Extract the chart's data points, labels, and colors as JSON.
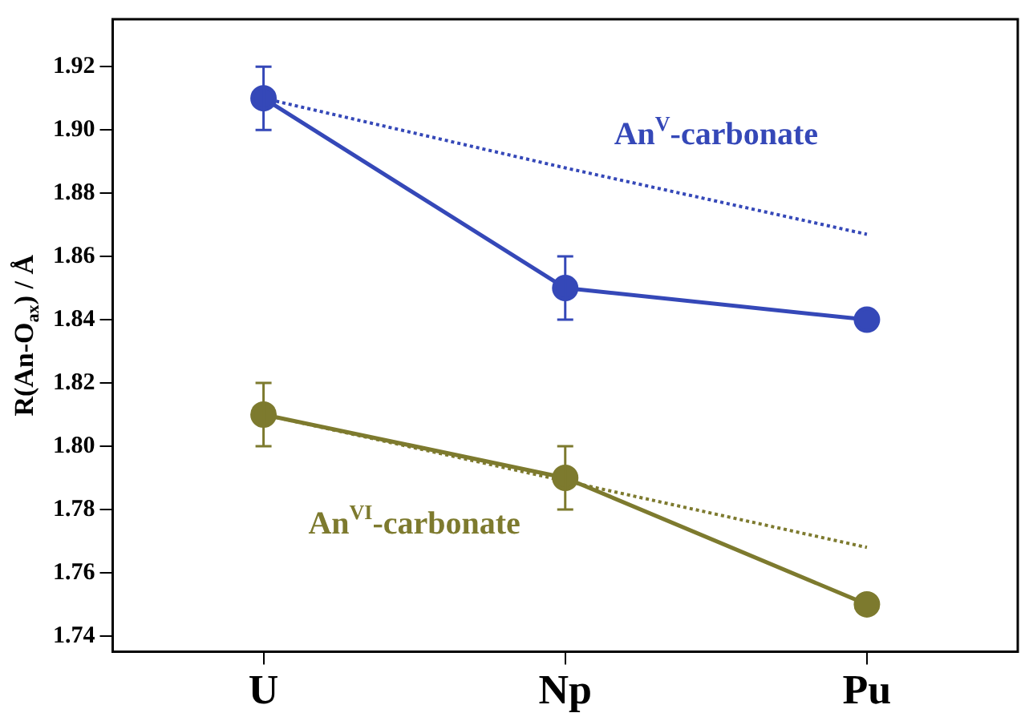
{
  "chart_data": {
    "type": "line",
    "ylabel": "R(An-O$_{ax}$) / Å",
    "categories": [
      "U",
      "Np",
      "Pu"
    ],
    "series": [
      {
        "name": "An$^{V}$-carbonate",
        "color": "#3548b8",
        "values": [
          1.91,
          1.85,
          1.84
        ],
        "errors": [
          0.01,
          0.01,
          null
        ],
        "marker": "circle",
        "line_style": "solid"
      },
      {
        "type": "line",
        "color": "#3548b8",
        "values": [
          1.91,
          1.888,
          1.867
        ],
        "marker": "none",
        "line_style": "dotted"
      },
      {
        "name": "An$^{VI}$-carbonate",
        "color": "#7d7a2e",
        "values": [
          1.81,
          1.79,
          1.75
        ],
        "errors": [
          0.01,
          0.01,
          null
        ],
        "marker": "circle",
        "line_style": "solid"
      },
      {
        "type": "line",
        "color": "#7d7a2e",
        "values": [
          1.81,
          1.789,
          1.768
        ],
        "marker": "none",
        "line_style": "dotted"
      }
    ],
    "ylim": [
      1.735,
      1.935
    ],
    "yticks": [
      1.74,
      1.76,
      1.78,
      {
        "value": 1.8,
        "label": "1.80"
      },
      1.82,
      1.84,
      1.86,
      1.88,
      {
        "value": 1.9,
        "label": "1.90"
      },
      1.92
    ],
    "grid": false,
    "legend": false
  }
}
